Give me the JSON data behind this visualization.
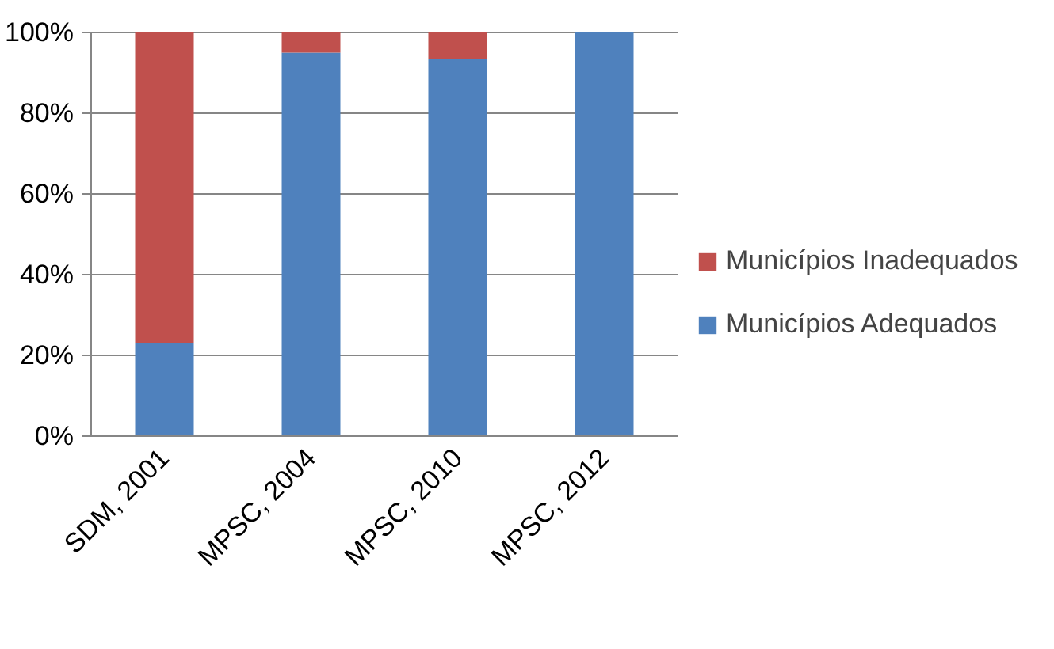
{
  "chart_data": {
    "type": "bar",
    "stacked": true,
    "categories": [
      "SDM, 2001",
      "MPSC, 2004",
      "MPSC, 2010",
      "MPSC, 2012"
    ],
    "series": [
      {
        "name": "Municípios Adequados",
        "color": "#4f81bd",
        "values": [
          23,
          95,
          93.5,
          100
        ]
      },
      {
        "name": "Municípios Inadequados",
        "color": "#c0504d",
        "values": [
          77,
          5,
          6.5,
          0
        ]
      }
    ],
    "ylim": [
      0,
      100
    ],
    "yticks": [
      {
        "value": 0,
        "label": "0%"
      },
      {
        "value": 20,
        "label": "20%"
      },
      {
        "value": 40,
        "label": "40%"
      },
      {
        "value": 60,
        "label": "60%"
      },
      {
        "value": 80,
        "label": "80%"
      },
      {
        "value": 100,
        "label": "100%"
      }
    ],
    "grid": "y",
    "legend": "right"
  }
}
